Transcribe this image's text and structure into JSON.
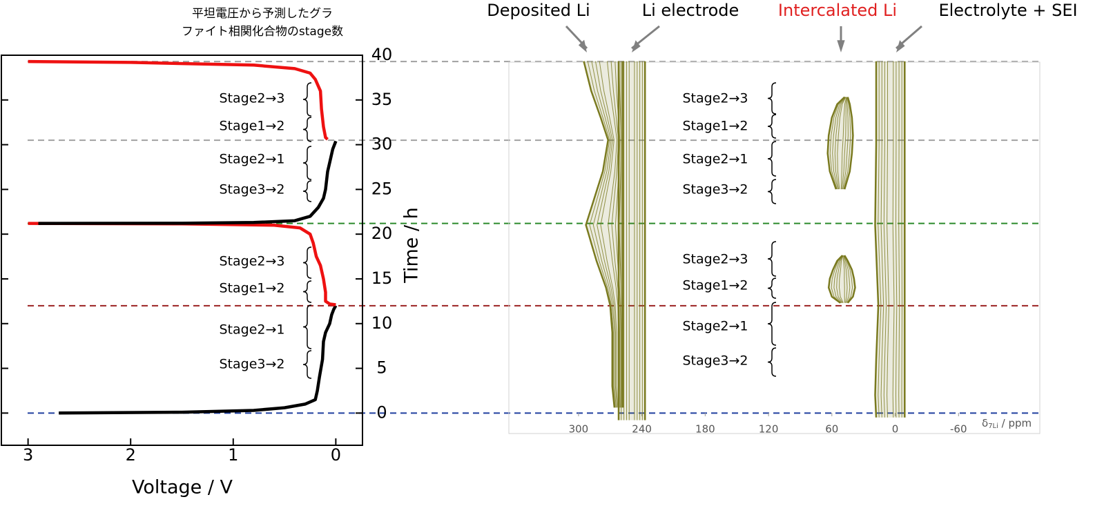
{
  "chart_data": [
    {
      "type": "line",
      "title": [
        "平坦電圧から予測したグラ",
        "ファイト相関化合物のstage数"
      ],
      "x_label": "Voltage / V",
      "y_label": "Time / h",
      "xlim": [
        3.26,
        -0.26
      ],
      "ylim": [
        -3.6,
        40
      ],
      "xticks": [
        3,
        2,
        1,
        0
      ],
      "yticks": [
        0,
        5,
        10,
        15,
        20,
        25,
        30,
        35,
        40
      ],
      "series": [
        {
          "color": "#000000",
          "x": [
            2.7,
            1.5,
            0.8,
            0.5,
            0.3,
            0.2,
            0.18,
            0.16,
            0.13,
            0.12,
            0.1,
            0.06,
            0.04,
            0.02,
            0.0
          ],
          "values": [
            0,
            0.1,
            0.3,
            0.6,
            1.0,
            1.5,
            2.5,
            4,
            6,
            8,
            9,
            10,
            11,
            11.6,
            12
          ]
        },
        {
          "color": "#ee1111",
          "x": [
            0.0,
            0.06,
            0.1,
            0.1,
            0.12,
            0.15,
            0.19,
            0.22,
            0.25,
            0.35,
            0.6,
            1.5,
            3.0
          ],
          "values": [
            12.1,
            12.2,
            12.5,
            13.5,
            15,
            16.5,
            17.5,
            19,
            20,
            20.7,
            21,
            21.15,
            21.2
          ]
        },
        {
          "color": "#000000",
          "x": [
            2.9,
            1.5,
            0.8,
            0.4,
            0.25,
            0.17,
            0.12,
            0.1,
            0.08,
            0.06,
            0.03,
            0.0
          ],
          "values": [
            21.2,
            21.22,
            21.3,
            21.5,
            22,
            23,
            24,
            25,
            27,
            28,
            29.5,
            30.4
          ]
        },
        {
          "color": "#ee1111",
          "x": [
            0.08,
            0.1,
            0.12,
            0.14,
            0.15,
            0.2,
            0.25,
            0.4,
            0.8,
            2,
            3.0
          ],
          "values": [
            30.6,
            30.8,
            32,
            34,
            36,
            37.3,
            38,
            38.5,
            38.9,
            39.2,
            39.3
          ]
        }
      ],
      "reference_lines": [
        {
          "value": 0,
          "color": "#1f3f9f"
        },
        {
          "value": 12,
          "color": "#9b2020"
        },
        {
          "value": 21.2,
          "color": "#2a8a2a"
        },
        {
          "value": 30.5,
          "color": "#a0a0a0"
        },
        {
          "value": 39.3,
          "color": "#a0a0a0"
        }
      ],
      "annotations": [
        "Stage2→3",
        "Stage1→2",
        "Stage2→1",
        "Stage3→2",
        "Stage2→3",
        "Stage1→2",
        "Stage2→1",
        "Stage3→2"
      ]
    },
    {
      "type": "contour",
      "x_label": {
        "symbol": "δ",
        "subscript": "7Li",
        "unit": " / ppm"
      },
      "xlim": [
        366,
        -137
      ],
      "ylim": [
        -2.3,
        39.2
      ],
      "xticks": [
        300,
        240,
        180,
        120,
        60,
        0,
        -60
      ],
      "color": "#7a7a1f",
      "regions": [
        {
          "t": [
            0.6,
            3,
            6,
            9,
            12,
            14,
            17,
            21,
            24,
            27,
            30.5,
            33,
            36,
            39.3
          ],
          "left": [
            266,
            268,
            268,
            268,
            270,
            274,
            283,
            293,
            285,
            277,
            272,
            279,
            288,
            295
          ],
          "right": [
            258,
            258,
            258,
            258,
            258,
            258,
            258,
            258,
            258,
            258,
            258,
            258,
            258,
            258
          ]
        },
        {
          "t": [
            -0.8,
            39.3
          ],
          "left": [
            262,
            262
          ],
          "right": [
            237,
            237
          ]
        },
        {
          "t": [
            12.3,
            13,
            14,
            15,
            16,
            17,
            17.6
          ],
          "left": [
            52,
            60,
            63,
            62,
            59,
            55,
            50
          ],
          "right": [
            45,
            40,
            38,
            39,
            41,
            45,
            48
          ]
        },
        {
          "t": [
            25,
            27,
            29,
            31,
            33,
            34.5,
            35.3
          ],
          "left": [
            56,
            62,
            64,
            63,
            60,
            55,
            48
          ],
          "right": [
            48,
            43,
            41,
            40,
            41,
            43,
            45
          ]
        },
        {
          "t": [
            -0.5,
            2,
            6,
            12,
            21,
            30,
            39.3
          ],
          "left": [
            18,
            19,
            18,
            16,
            19,
            18,
            18
          ],
          "right": [
            -9,
            -9,
            -9,
            -9,
            -9,
            -9,
            -9
          ]
        }
      ],
      "peak_labels": [
        {
          "text": "Deposited Li",
          "color": "#000000"
        },
        {
          "text": "Li electrode",
          "color": "#000000"
        },
        {
          "text": "Intercalated Li",
          "color": "#e02020"
        },
        {
          "text": "Electrolyte + SEI",
          "color": "#000000"
        }
      ],
      "annotations": [
        "Stage2→3",
        "Stage1→2",
        "Stage2→1",
        "Stage3→2",
        "Stage2→3",
        "Stage1→2",
        "Stage2→1",
        "Stage3→2"
      ]
    }
  ]
}
